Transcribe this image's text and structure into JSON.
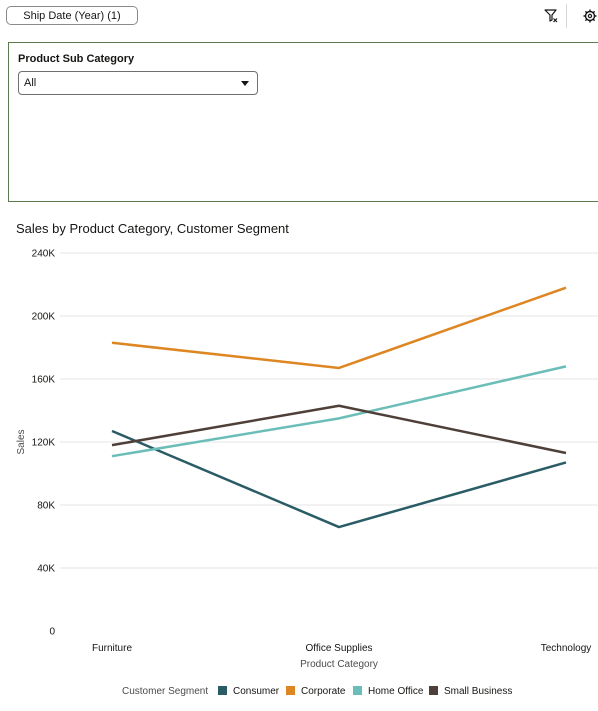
{
  "toolbar": {
    "filter_pill_label": "Ship Date (Year) (1)",
    "filter_icon": "funnel-clear-icon",
    "settings_icon": "gear-icon"
  },
  "filter": {
    "label": "Product Sub Category",
    "selected": "All"
  },
  "chart_data": {
    "type": "line",
    "title": "Sales by Product Category, Customer Segment",
    "xlabel": "Product Category",
    "ylabel": "Sales",
    "categories": [
      "Furniture",
      "Office Supplies",
      "Technology"
    ],
    "ylim": [
      0,
      240000
    ],
    "yticks": [
      0,
      40000,
      80000,
      120000,
      160000,
      200000,
      240000
    ],
    "ytick_labels": [
      "0",
      "40K",
      "80K",
      "120K",
      "160K",
      "200K",
      "240K"
    ],
    "grid": true,
    "legend_title": "Customer Segment",
    "legend_position": "bottom",
    "series": [
      {
        "name": "Consumer",
        "color": "#2a5c65",
        "values": [
          127000,
          66000,
          107000
        ]
      },
      {
        "name": "Corporate",
        "color": "#dd8622",
        "values": [
          183000,
          167000,
          218000
        ]
      },
      {
        "name": "Home Office",
        "color": "#6bbdb8",
        "values": [
          111000,
          135000,
          168000
        ]
      },
      {
        "name": "Small Business",
        "color": "#4e4039",
        "values": [
          118000,
          143000,
          113000
        ]
      }
    ]
  }
}
